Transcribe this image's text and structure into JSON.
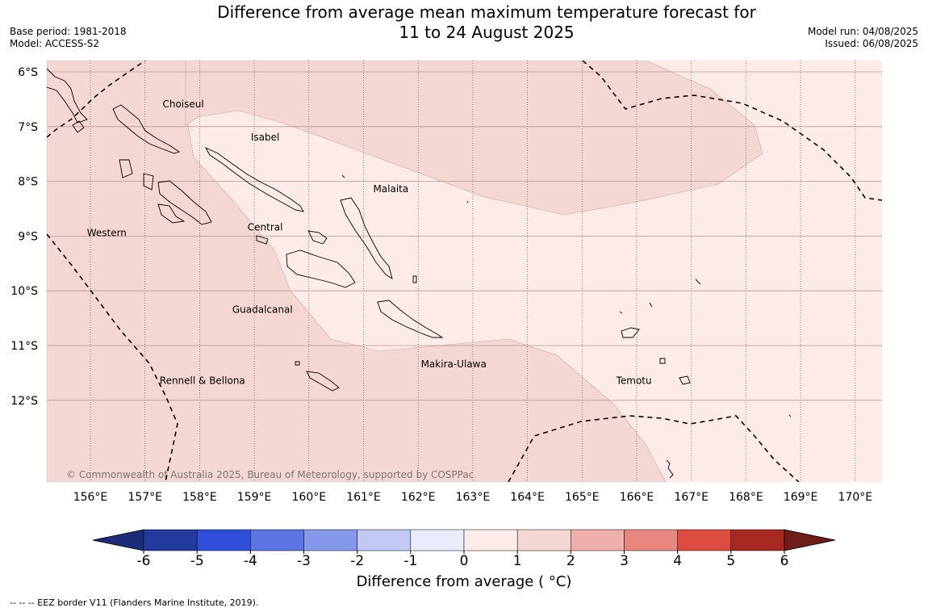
{
  "title": {
    "line1": "Difference from average mean maximum temperature forecast for",
    "line2": "11 to 24 August 2025"
  },
  "meta_left": {
    "base_period": "Base period: 1981-2018",
    "model": "Model: ACCESS-S2"
  },
  "meta_right": {
    "model_run": "Model run: 04/08/2025",
    "issued": "Issued: 06/08/2025"
  },
  "map": {
    "lon_labels": [
      "156°E",
      "157°E",
      "158°E",
      "159°E",
      "160°E",
      "161°E",
      "162°E",
      "163°E",
      "164°E",
      "165°E",
      "166°E",
      "167°E",
      "168°E",
      "169°E",
      "170°E"
    ],
    "lat_labels": [
      "6°S",
      "7°S",
      "8°S",
      "9°S",
      "10°S",
      "11°S",
      "12°S"
    ],
    "regions": [
      {
        "name": "Choiseul",
        "lon": 157.7,
        "lat": -6.65
      },
      {
        "name": "Isabel",
        "lon": 159.2,
        "lat": -7.25
      },
      {
        "name": "Malaita",
        "lon": 161.5,
        "lat": -8.2
      },
      {
        "name": "Western",
        "lon": 156.3,
        "lat": -9.0
      },
      {
        "name": "Central",
        "lon": 159.2,
        "lat": -8.9
      },
      {
        "name": "Guadalcanal",
        "lon": 159.15,
        "lat": -10.4
      },
      {
        "name": "Makira-Ulawa",
        "lon": 162.65,
        "lat": -11.4
      },
      {
        "name": "Rennell & Bellona",
        "lon": 158.05,
        "lat": -11.7
      },
      {
        "name": "Temotu",
        "lon": 165.95,
        "lat": -11.7
      }
    ],
    "copyright": "© Commonwealth of Australia 2025, Bureau of Meteorology, supported by COSPPac",
    "colors": {
      "band_0_1": "#fcebe8",
      "band_1_2": "#f4d6d3",
      "graticule": "#555555",
      "land_outline": "#000000"
    }
  },
  "colorbar": {
    "ticks": [
      "-6",
      "-5",
      "-4",
      "-3",
      "-2",
      "-1",
      "0",
      "1",
      "2",
      "3",
      "4",
      "5",
      "6"
    ],
    "colors": [
      "#233a9e",
      "#2f4fdb",
      "#5b75e3",
      "#8698ec",
      "#c1c9f4",
      "#e9ecfb",
      "#fcebe8",
      "#f4d6d3",
      "#eeaeab",
      "#e7877f",
      "#dc4c40",
      "#a72a22"
    ],
    "under_color": "#1c2c78",
    "over_color": "#701d19",
    "label": "Difference from average ( °C)"
  },
  "footer": "--  --  -- EEZ border V11 (Flanders Marine Institute, 2019)."
}
